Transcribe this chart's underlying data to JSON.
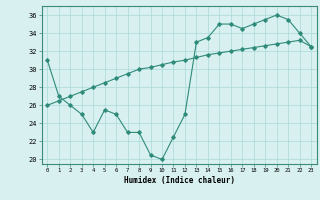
{
  "xlabel": "Humidex (Indice chaleur)",
  "x": [
    0,
    1,
    2,
    3,
    4,
    5,
    6,
    7,
    8,
    9,
    10,
    11,
    12,
    13,
    14,
    15,
    16,
    17,
    18,
    19,
    20,
    21,
    22,
    23
  ],
  "y_main": [
    31,
    27,
    26,
    25,
    23,
    25.5,
    25,
    23,
    23,
    20.5,
    20,
    22.5,
    25,
    33,
    33.5,
    35,
    35,
    34.5,
    35,
    35.5,
    36,
    35.5,
    34,
    32.5
  ],
  "y_trend": [
    26,
    26.5,
    27,
    27.5,
    28,
    28.5,
    29,
    29.5,
    30,
    30.2,
    30.5,
    30.8,
    31,
    31.3,
    31.6,
    31.8,
    32,
    32.2,
    32.4,
    32.6,
    32.8,
    33.0,
    33.2,
    32.5
  ],
  "line_color": "#2e8b7a",
  "bg_color": "#d8f0f0",
  "grid_color": "#aad8d8",
  "xlim": [
    -0.5,
    23.5
  ],
  "ylim": [
    19.5,
    37
  ],
  "yticks": [
    20,
    22,
    24,
    26,
    28,
    30,
    32,
    34,
    36
  ],
  "xticks": [
    0,
    1,
    2,
    3,
    4,
    5,
    6,
    7,
    8,
    9,
    10,
    11,
    12,
    13,
    14,
    15,
    16,
    17,
    18,
    19,
    20,
    21,
    22,
    23
  ]
}
